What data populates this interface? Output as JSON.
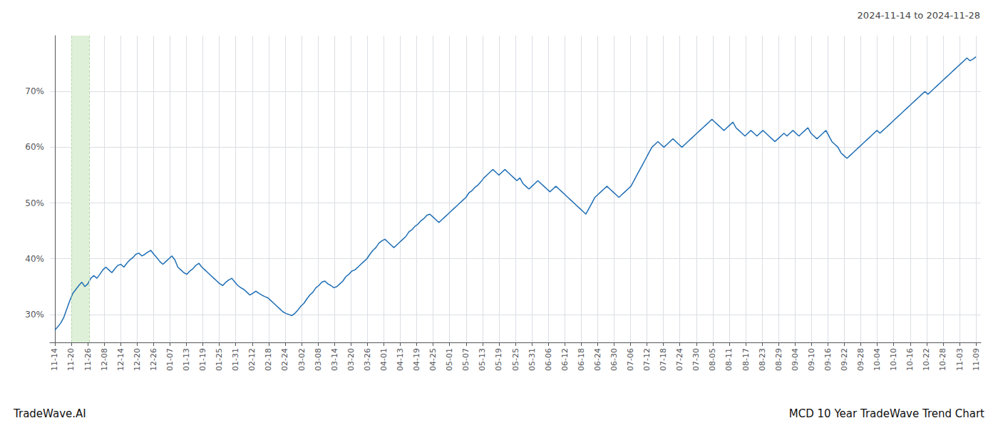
{
  "chart_data": {
    "type": "line",
    "title": "2024-11-14 to 2024-11-28",
    "annotations": [
      "TradeWave.AI",
      "MCD 10 Year TradeWave Trend Chart"
    ],
    "color": "#1f6eb4",
    "grid": true,
    "xlim": [
      -0.3,
      56.3
    ],
    "xticks": [
      {
        "value": 0,
        "label": "11-14"
      },
      {
        "value": 1,
        "label": "11-20"
      },
      {
        "value": 2,
        "label": "11-26"
      },
      {
        "value": 3,
        "label": "12-08"
      },
      {
        "value": 4,
        "label": "12-14"
      },
      {
        "value": 5,
        "label": "12-20"
      },
      {
        "value": 6,
        "label": "12-26"
      },
      {
        "value": 7,
        "label": "01-07"
      },
      {
        "value": 8,
        "label": "01-13"
      },
      {
        "value": 9,
        "label": "01-19"
      },
      {
        "value": 10,
        "label": "01-25"
      },
      {
        "value": 11,
        "label": "01-31"
      },
      {
        "value": 12,
        "label": "02-12"
      },
      {
        "value": 13,
        "label": "02-18"
      },
      {
        "value": 14,
        "label": "02-24"
      },
      {
        "value": 15,
        "label": "03-02"
      },
      {
        "value": 16,
        "label": "03-08"
      },
      {
        "value": 17,
        "label": "03-14"
      },
      {
        "value": 18,
        "label": "03-20"
      },
      {
        "value": 19,
        "label": "03-26"
      },
      {
        "value": 20,
        "label": "04-01"
      },
      {
        "value": 21,
        "label": "04-13"
      },
      {
        "value": 22,
        "label": "04-19"
      },
      {
        "value": 23,
        "label": "04-25"
      },
      {
        "value": 24,
        "label": "05-01"
      },
      {
        "value": 25,
        "label": "05-07"
      },
      {
        "value": 26,
        "label": "05-13"
      },
      {
        "value": 27,
        "label": "05-19"
      },
      {
        "value": 28,
        "label": "05-25"
      },
      {
        "value": 29,
        "label": "05-31"
      },
      {
        "value": 30,
        "label": "06-06"
      },
      {
        "value": 31,
        "label": "06-12"
      },
      {
        "value": 32,
        "label": "06-18"
      },
      {
        "value": 33,
        "label": "06-24"
      },
      {
        "value": 34,
        "label": "06-30"
      },
      {
        "value": 35,
        "label": "07-06"
      },
      {
        "value": 36,
        "label": "07-12"
      },
      {
        "value": 37,
        "label": "07-18"
      },
      {
        "value": 38,
        "label": "07-24"
      },
      {
        "value": 39,
        "label": "07-30"
      },
      {
        "value": 40,
        "label": "08-05"
      },
      {
        "value": 41,
        "label": "08-11"
      },
      {
        "value": 42,
        "label": "08-17"
      },
      {
        "value": 43,
        "label": "08-23"
      },
      {
        "value": 44,
        "label": "08-29"
      },
      {
        "value": 45,
        "label": "09-04"
      },
      {
        "value": 46,
        "label": "09-10"
      },
      {
        "value": 47,
        "label": "09-16"
      },
      {
        "value": 48,
        "label": "09-22"
      },
      {
        "value": 49,
        "label": "09-28"
      },
      {
        "value": 50,
        "label": "10-04"
      },
      {
        "value": 51,
        "label": "10-10"
      },
      {
        "value": 52,
        "label": "10-16"
      },
      {
        "value": 53,
        "label": "10-22"
      },
      {
        "value": 54,
        "label": "10-28"
      },
      {
        "value": 55,
        "label": "11-03"
      },
      {
        "value": 56,
        "label": "11-09"
      }
    ],
    "ylim": [
      25,
      80
    ],
    "yticks": [
      {
        "value": 30,
        "label": "30%"
      },
      {
        "value": 40,
        "label": "40%"
      },
      {
        "value": 50,
        "label": "50%"
      },
      {
        "value": 60,
        "label": "60%"
      },
      {
        "value": 70,
        "label": "70%"
      }
    ],
    "highlight": {
      "xstart": 1.0,
      "xend": 2.1,
      "color": "#dff0d8"
    },
    "values": [
      27.2,
      27.8,
      28.5,
      29.5,
      31.0,
      32.5,
      33.8,
      34.5,
      35.2,
      35.8,
      35.0,
      35.5,
      36.5,
      37.0,
      36.5,
      37.2,
      38.0,
      38.5,
      38.0,
      37.5,
      38.2,
      38.8,
      39.0,
      38.5,
      39.2,
      39.8,
      40.2,
      40.8,
      41.0,
      40.5,
      40.8,
      41.2,
      41.5,
      40.8,
      40.2,
      39.5,
      39.0,
      39.5,
      40.0,
      40.5,
      39.8,
      38.5,
      38.0,
      37.5,
      37.2,
      37.8,
      38.2,
      38.8,
      39.2,
      38.5,
      38.0,
      37.5,
      37.0,
      36.5,
      36.0,
      35.5,
      35.2,
      35.8,
      36.2,
      36.5,
      35.8,
      35.2,
      34.8,
      34.5,
      34.0,
      33.5,
      33.8,
      34.2,
      33.8,
      33.5,
      33.2,
      33.0,
      32.5,
      32.0,
      31.5,
      31.0,
      30.5,
      30.2,
      30.0,
      29.8,
      30.2,
      30.8,
      31.5,
      32.0,
      32.8,
      33.5,
      34.0,
      34.8,
      35.2,
      35.8,
      36.0,
      35.5,
      35.2,
      34.8,
      35.0,
      35.5,
      36.0,
      36.8,
      37.2,
      37.8,
      38.0,
      38.5,
      39.0,
      39.5,
      40.0,
      40.8,
      41.5,
      42.0,
      42.8,
      43.2,
      43.5,
      43.0,
      42.5,
      42.0,
      42.5,
      43.0,
      43.5,
      44.0,
      44.8,
      45.2,
      45.8,
      46.2,
      46.8,
      47.2,
      47.8,
      48.0,
      47.5,
      47.0,
      46.5,
      47.0,
      47.5,
      48.0,
      48.5,
      49.0,
      49.5,
      50.0,
      50.5,
      51.0,
      51.8,
      52.2,
      52.8,
      53.2,
      53.8,
      54.5,
      55.0,
      55.5,
      56.0,
      55.5,
      55.0,
      55.5,
      56.0,
      55.5,
      55.0,
      54.5,
      54.0,
      54.5,
      53.5,
      53.0,
      52.5,
      53.0,
      53.5,
      54.0,
      53.5,
      53.0,
      52.5,
      52.0,
      52.5,
      53.0,
      52.5,
      52.0,
      51.5,
      51.0,
      50.5,
      50.0,
      49.5,
      49.0,
      48.5,
      48.0,
      49.0,
      50.0,
      51.0,
      51.5,
      52.0,
      52.5,
      53.0,
      52.5,
      52.0,
      51.5,
      51.0,
      51.5,
      52.0,
      52.5,
      53.0,
      54.0,
      55.0,
      56.0,
      57.0,
      58.0,
      59.0,
      60.0,
      60.5,
      61.0,
      60.5,
      60.0,
      60.5,
      61.0,
      61.5,
      61.0,
      60.5,
      60.0,
      60.5,
      61.0,
      61.5,
      62.0,
      62.5,
      63.0,
      63.5,
      64.0,
      64.5,
      65.0,
      64.5,
      64.0,
      63.5,
      63.0,
      63.5,
      64.0,
      64.5,
      63.5,
      63.0,
      62.5,
      62.0,
      62.5,
      63.0,
      62.5,
      62.0,
      62.5,
      63.0,
      62.5,
      62.0,
      61.5,
      61.0,
      61.5,
      62.0,
      62.5,
      62.0,
      62.5,
      63.0,
      62.5,
      62.0,
      62.5,
      63.0,
      63.5,
      62.5,
      62.0,
      61.5,
      62.0,
      62.5,
      63.0,
      62.0,
      61.0,
      60.5,
      60.0,
      59.0,
      58.5,
      58.0,
      58.5,
      59.0,
      59.5,
      60.0,
      60.5,
      61.0,
      61.5,
      62.0,
      62.5,
      63.0,
      62.5,
      63.0,
      63.5,
      64.0,
      64.5,
      65.0,
      65.5,
      66.0,
      66.5,
      67.0,
      67.5,
      68.0,
      68.5,
      69.0,
      69.5,
      70.0,
      69.5,
      70.0,
      70.5,
      71.0,
      71.5,
      72.0,
      72.5,
      73.0,
      73.5,
      74.0,
      74.5,
      75.0,
      75.5,
      76.0,
      75.5,
      75.8,
      76.2
    ]
  }
}
